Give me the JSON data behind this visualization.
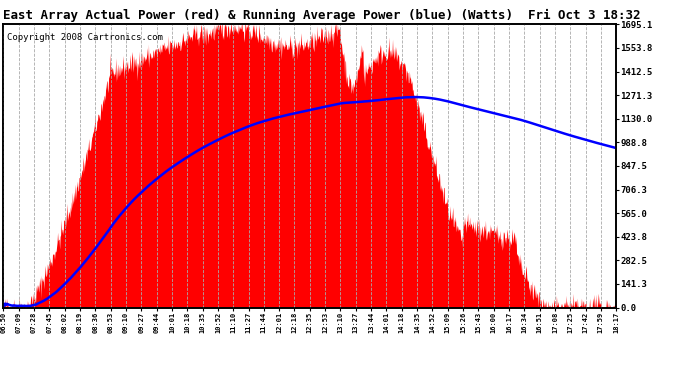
{
  "title": "East Array Actual Power (red) & Running Average Power (blue) (Watts)  Fri Oct 3 18:32",
  "copyright": "Copyright 2008 Cartronics.com",
  "ylabel_right_values": [
    0.0,
    141.3,
    282.5,
    423.8,
    565.0,
    706.3,
    847.5,
    988.8,
    1130.0,
    1271.3,
    1412.5,
    1553.8,
    1695.1
  ],
  "ymax": 1695.1,
  "ymin": 0.0,
  "x_tick_labels": [
    "06:50",
    "07:09",
    "07:28",
    "07:45",
    "08:02",
    "08:19",
    "08:36",
    "08:53",
    "09:10",
    "09:27",
    "09:44",
    "10:01",
    "10:18",
    "10:35",
    "10:52",
    "11:10",
    "11:27",
    "11:44",
    "12:01",
    "12:18",
    "12:35",
    "12:53",
    "13:10",
    "13:27",
    "13:44",
    "14:01",
    "14:18",
    "14:35",
    "14:52",
    "15:09",
    "15:26",
    "15:43",
    "16:00",
    "16:17",
    "16:34",
    "16:51",
    "17:08",
    "17:25",
    "17:42",
    "17:59",
    "18:17"
  ],
  "background_color": "#ffffff",
  "plot_bg_color": "#ffffff",
  "grid_color": "#aaaaaa",
  "actual_color": "#ff0000",
  "avg_color": "#0000ff",
  "title_fontsize": 9,
  "copyright_fontsize": 6.5
}
